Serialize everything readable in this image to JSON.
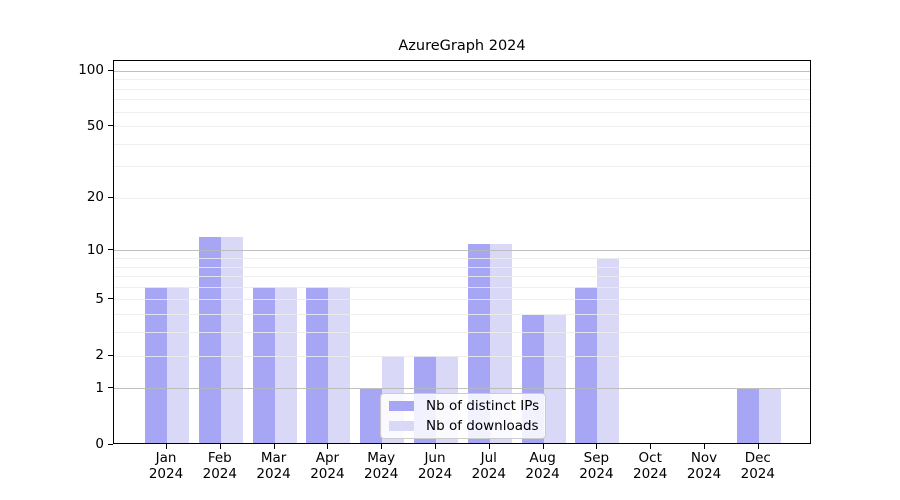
{
  "figure": {
    "background": "#ffffff"
  },
  "chart_data": {
    "type": "bar",
    "title": "AzureGraph 2024",
    "xlabel": "",
    "ylabel": "",
    "categories": [
      {
        "month": "Jan",
        "year": "2024"
      },
      {
        "month": "Feb",
        "year": "2024"
      },
      {
        "month": "Mar",
        "year": "2024"
      },
      {
        "month": "Apr",
        "year": "2024"
      },
      {
        "month": "May",
        "year": "2024"
      },
      {
        "month": "Jun",
        "year": "2024"
      },
      {
        "month": "Jul",
        "year": "2024"
      },
      {
        "month": "Aug",
        "year": "2024"
      },
      {
        "month": "Sep",
        "year": "2024"
      },
      {
        "month": "Oct",
        "year": "2024"
      },
      {
        "month": "Nov",
        "year": "2024"
      },
      {
        "month": "Dec",
        "year": "2024"
      }
    ],
    "series": [
      {
        "name": "Nb of distinct IPs",
        "color": "#a6a6f5",
        "values": [
          6,
          12,
          6,
          6,
          1,
          2,
          11,
          4,
          6,
          0,
          0,
          1
        ]
      },
      {
        "name": "Nb of downloads",
        "color": "#d9d9f7",
        "values": [
          6,
          12,
          6,
          6,
          2,
          2,
          11,
          4,
          9,
          0,
          0,
          1
        ]
      }
    ],
    "y_axis": {
      "scale": "log1p",
      "tick_values": [
        100,
        50,
        20,
        10,
        5,
        2,
        1,
        0
      ],
      "tick_labels": [
        "100",
        "50",
        "20",
        "10",
        "5",
        "2",
        "1",
        "0"
      ],
      "range_top": 113.5,
      "major_gridlines": [
        1,
        10,
        100
      ],
      "minor_gridlines": [
        2,
        3,
        4,
        5,
        6,
        7,
        8,
        9,
        20,
        30,
        40,
        50,
        60,
        70,
        80,
        90
      ],
      "grid": true
    },
    "legend": {
      "position": "lower-center"
    },
    "colors": {
      "major_grid": "#b9b9b9",
      "minor_grid": "#ececec",
      "axis": "#000000",
      "text": "#000000"
    }
  }
}
